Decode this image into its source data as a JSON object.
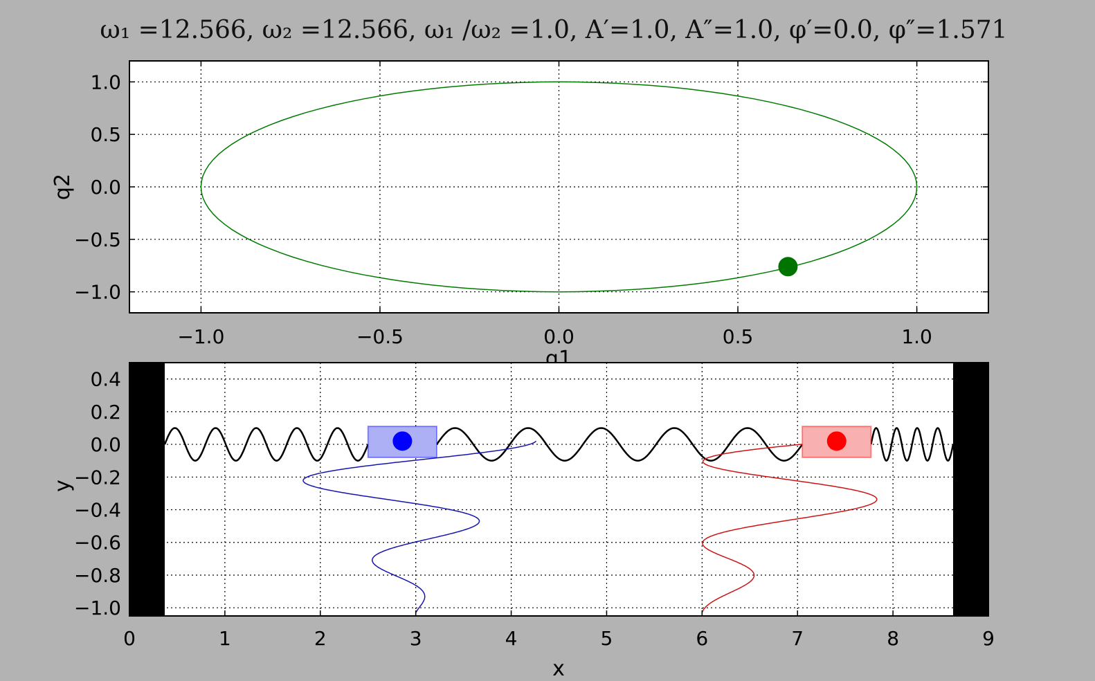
{
  "figure_title": "ω₁ =12.566, ω₂ =12.566, ω₁ /ω₂ =1.0, A′=1.0, A″=1.0, φ′=0.0, φ″=1.571",
  "chart_data": [
    {
      "type": "line",
      "title": "",
      "xlabel": "q1",
      "ylabel": "q2",
      "xlim": [
        -1.2,
        1.2
      ],
      "ylim": [
        -1.2,
        1.2
      ],
      "grid": true,
      "xticks": [
        -1.0,
        -0.5,
        0.0,
        0.5,
        1.0
      ],
      "xtick_labels": [
        "−1.0",
        "−0.5",
        "0.0",
        "0.5",
        "1.0"
      ],
      "yticks": [
        1.0,
        0.5,
        0.0,
        -0.5,
        -1.0
      ],
      "ytick_labels": [
        "1.0",
        "0.5",
        "0.0",
        "−0.5",
        "−1.0"
      ],
      "series": [
        {
          "kind": "ellipse-trajectory",
          "color": "#007a00",
          "amplitude_q1": 1.0,
          "amplitude_q2": 1.0,
          "phase_q1": 0.0,
          "phase_q2": 1.571
        }
      ],
      "marker": {
        "q1": 0.64,
        "q2": -0.76,
        "color": "#007400"
      }
    },
    {
      "type": "line",
      "title": "",
      "xlabel": "x",
      "ylabel": "y",
      "xlim": [
        0,
        9
      ],
      "ylim": [
        -1.05,
        0.5
      ],
      "grid": true,
      "xticks": [
        0,
        1,
        2,
        3,
        4,
        5,
        6,
        7,
        8,
        9
      ],
      "xtick_labels": [
        "0",
        "1",
        "2",
        "3",
        "4",
        "5",
        "6",
        "7",
        "8",
        "9"
      ],
      "yticks": [
        0.4,
        0.2,
        0.0,
        -0.2,
        -0.4,
        -0.6,
        -0.8,
        -1.0
      ],
      "ytick_labels": [
        "0.4",
        "0.2",
        "0.0",
        "−0.2",
        "−0.4",
        "−0.6",
        "−0.8",
        "−1.0"
      ],
      "walls": {
        "left": [
          0,
          0.37
        ],
        "right": [
          8.63,
          9
        ],
        "color": "#000000"
      },
      "springs": [
        {
          "x_start": 0.37,
          "x_end": 2.5,
          "coils": 5,
          "amplitude": 0.1
        },
        {
          "x_start": 3.22,
          "x_end": 7.05,
          "coils": 5,
          "amplitude": 0.1
        },
        {
          "x_start": 7.77,
          "x_end": 8.63,
          "coils": 4,
          "amplitude": 0.1
        }
      ],
      "masses": [
        {
          "center_x": 2.86,
          "center_y": 0.02,
          "box_x": [
            2.5,
            3.22
          ],
          "box_y": [
            -0.08,
            0.11
          ],
          "color": "#0000ff",
          "fill": "#aeb0f6"
        },
        {
          "center_x": 7.41,
          "center_y": 0.02,
          "box_x": [
            7.05,
            7.77
          ],
          "box_y": [
            -0.08,
            0.11
          ],
          "color": "#ff0000",
          "fill": "#f8b0b0"
        }
      ],
      "series": [
        {
          "name": "",
          "color": "#1515b0",
          "center_x": 3.0,
          "amplitude": 1.4,
          "omega": 12.566,
          "phase": 0.0,
          "t_start": 1.05,
          "x_at_end": 2.86,
          "y_at_end": 0.02
        },
        {
          "name": "",
          "color": "#cc1414",
          "center_x": 6.0,
          "amplitude": 1.4,
          "omega": 12.566,
          "phase": 1.571,
          "t_start": 1.05,
          "x_at_end": 7.41,
          "y_at_end": 0.02
        }
      ]
    }
  ]
}
